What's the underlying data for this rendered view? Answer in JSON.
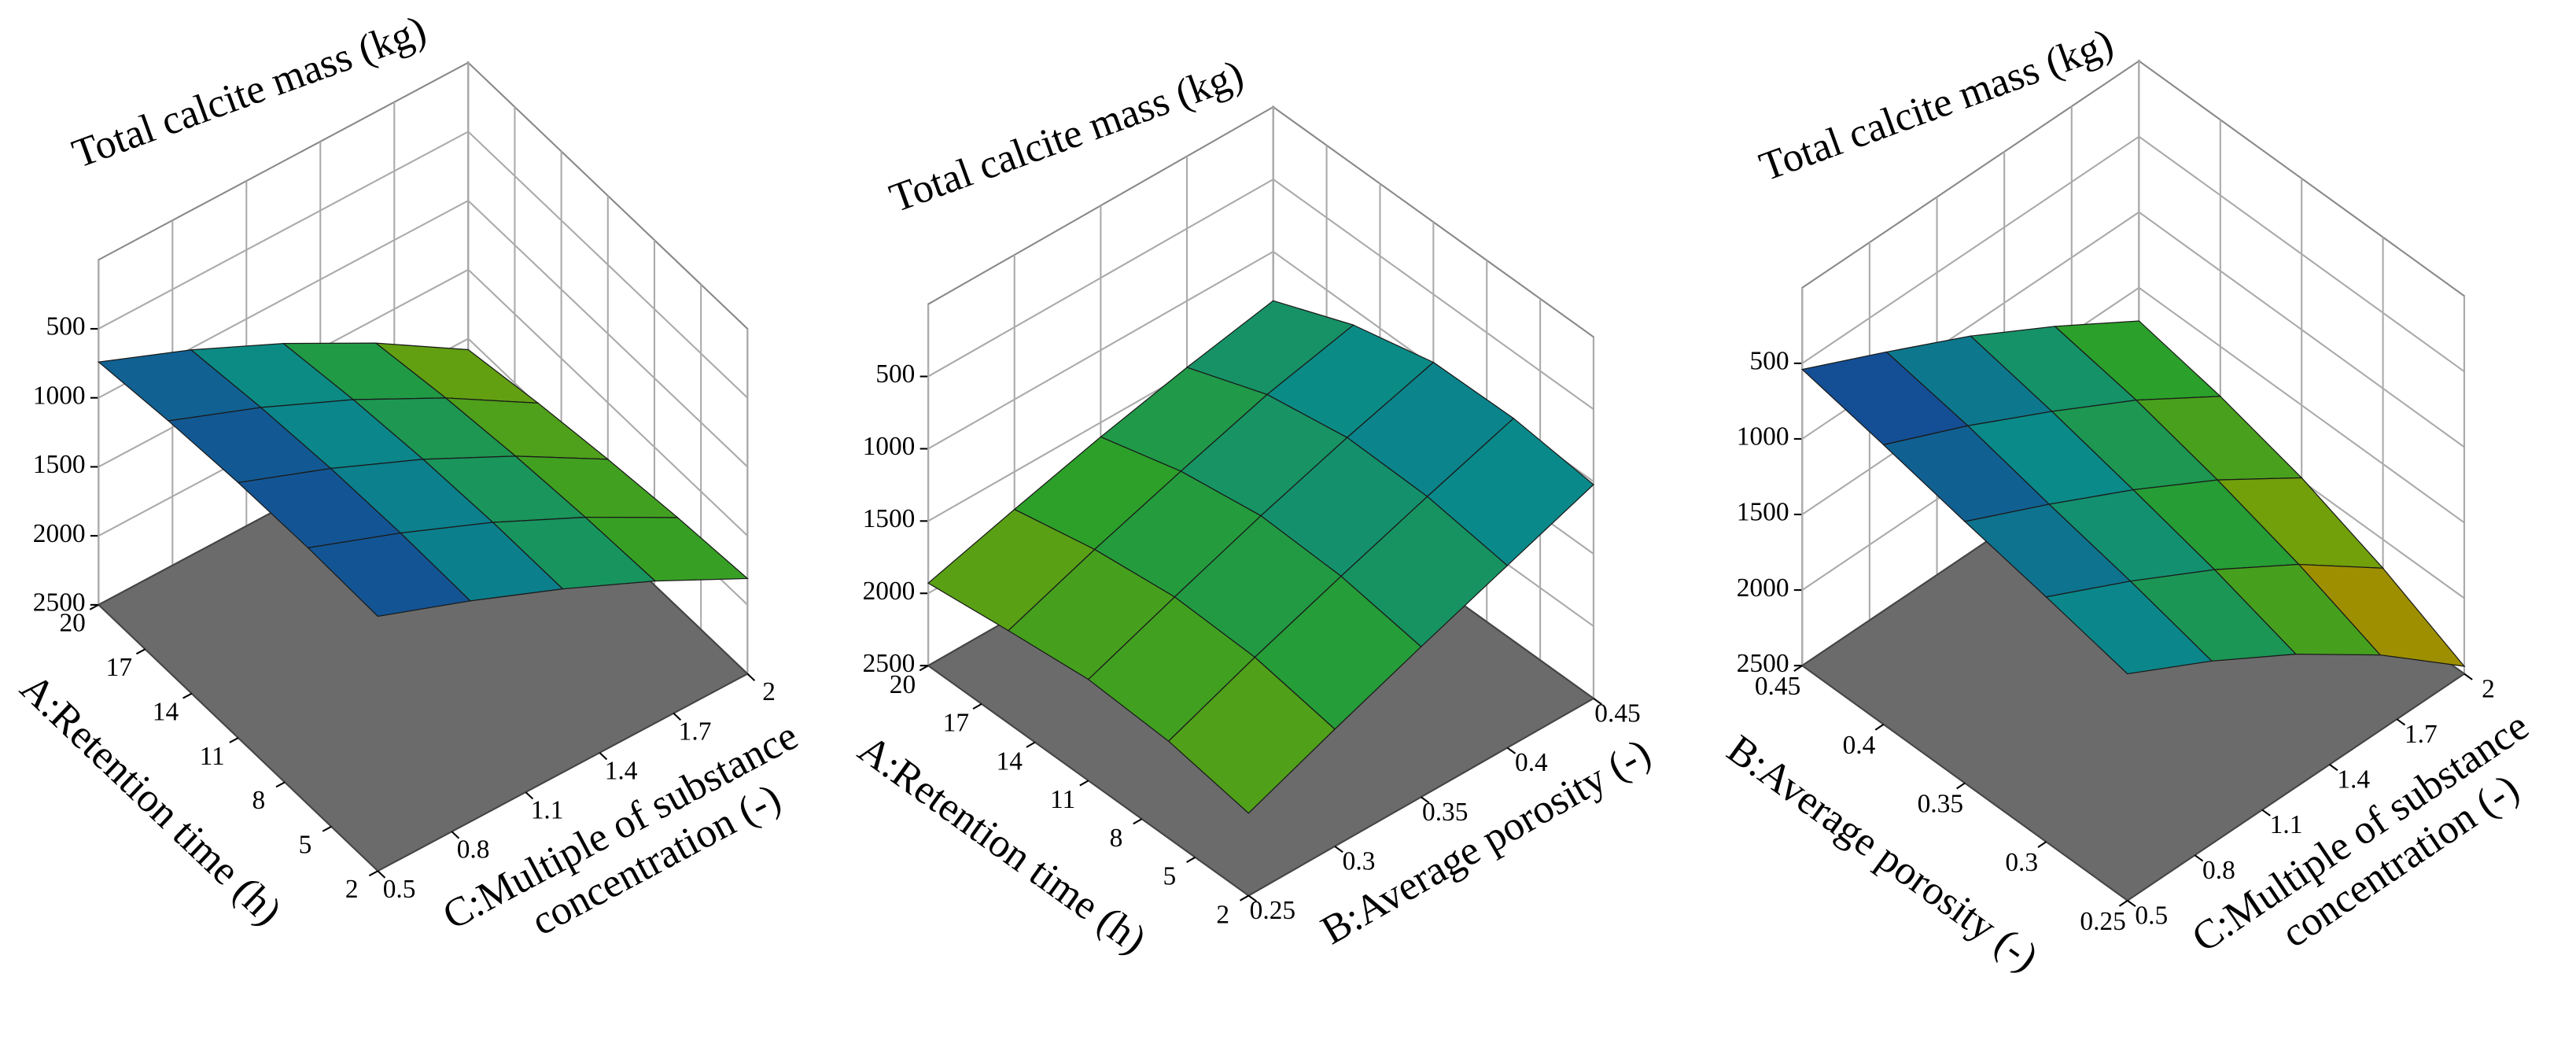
{
  "chart_data": [
    {
      "type": "surface3d",
      "z_axis": {
        "label": "Total calcite mass (kg)",
        "lim": [
          2500,
          0
        ],
        "ticks": [
          500,
          1000,
          1500,
          2000,
          2500
        ]
      },
      "left_axis": {
        "label": "A:Retention time (h)",
        "lim": [
          2,
          20
        ],
        "ticks": [
          2,
          5,
          8,
          11,
          14,
          17,
          20
        ]
      },
      "right_axis": {
        "label": [
          "C:Multiple of substance",
          "concentration (-)"
        ],
        "lim": [
          0.5,
          2
        ],
        "ticks": [
          0.5,
          0.8,
          1.1,
          1.4,
          1.7,
          2
        ]
      },
      "surface": {
        "left_values": [
          2,
          6.5,
          11,
          15.5,
          20
        ],
        "right_values": [
          0.5,
          0.875,
          1.25,
          1.625,
          2
        ],
        "z": [
          [
            655,
            900,
            1170,
            1470,
            1810
          ],
          [
            640,
            890,
            1170,
            1490,
            1850
          ],
          [
            650,
            905,
            1195,
            1530,
            1910
          ],
          [
            685,
            945,
            1245,
            1590,
            1985
          ],
          [
            740,
            1010,
            1320,
            1675,
            2080
          ]
        ]
      }
    },
    {
      "type": "surface3d",
      "z_axis": {
        "label": "Total calcite mass (kg)",
        "lim": [
          2500,
          0
        ],
        "ticks": [
          500,
          1000,
          1500,
          2000,
          2500
        ]
      },
      "left_axis": {
        "label": "A:Retention time (h)",
        "lim": [
          2,
          20
        ],
        "ticks": [
          2,
          5,
          8,
          11,
          14,
          17,
          20
        ]
      },
      "right_axis": {
        "label": [
          "B:Average porosity (-)"
        ],
        "lim": [
          0.25,
          0.45
        ],
        "ticks": [
          0.25,
          0.3,
          0.35,
          0.4,
          0.45
        ]
      },
      "surface": {
        "left_values": [
          2,
          6.5,
          11,
          15.5,
          20
        ],
        "right_values": [
          0.25,
          0.3,
          0.35,
          0.4,
          0.45
        ],
        "z": [
          [
            1930,
            1690,
            1460,
            1240,
            1020
          ],
          [
            1830,
            1590,
            1370,
            1160,
            960
          ],
          [
            1800,
            1570,
            1350,
            1150,
            970
          ],
          [
            1860,
            1640,
            1440,
            1250,
            1110
          ],
          [
            1930,
            1760,
            1600,
            1460,
            1340
          ]
        ]
      }
    },
    {
      "type": "surface3d",
      "z_axis": {
        "label": "Total calcite mass (kg)",
        "lim": [
          2500,
          0
        ],
        "ticks": [
          500,
          1000,
          1500,
          2000,
          2500
        ]
      },
      "left_axis": {
        "label": "B:Average porosity (-)",
        "lim": [
          0.25,
          0.45
        ],
        "ticks": [
          0.25,
          0.3,
          0.35,
          0.4,
          0.45
        ]
      },
      "right_axis": {
        "label": [
          "C:Multiple of substance",
          "concentration (-)"
        ],
        "lim": [
          0.5,
          2
        ],
        "ticks": [
          0.5,
          0.8,
          1.1,
          1.4,
          1.7,
          2
        ]
      },
      "surface": {
        "left_values": [
          0.25,
          0.3,
          0.35,
          0.4,
          0.45
        ],
        "right_values": [
          0.5,
          0.875,
          1.25,
          1.625,
          2
        ],
        "z": [
          [
            1000,
            1290,
            1620,
            2000,
            2450
          ],
          [
            880,
            1150,
            1450,
            1790,
            2190
          ],
          [
            770,
            1030,
            1310,
            1620,
            1980
          ],
          [
            650,
            900,
            1180,
            1480,
            1830
          ],
          [
            540,
            800,
            1070,
            1380,
            1720
          ]
        ]
      }
    }
  ]
}
